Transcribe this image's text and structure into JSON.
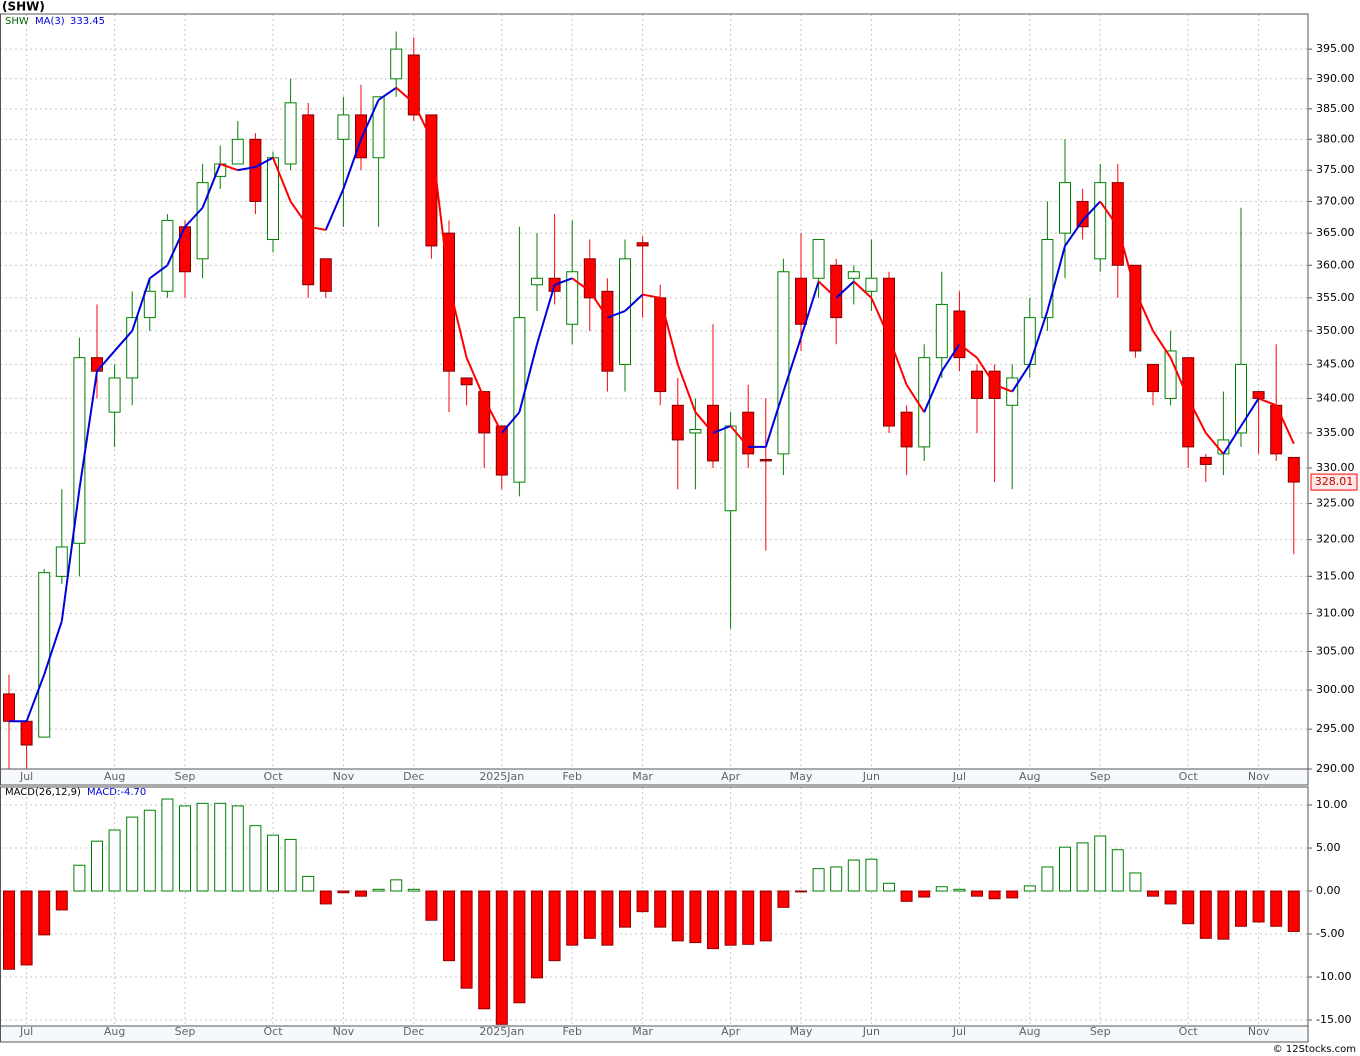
{
  "header": "(SHW)",
  "footer": "© 12Stocks.com",
  "chart_data": [
    {
      "type": "candlestick",
      "legend": {
        "symbol": "SHW",
        "ma_label": "MA(3)"
      },
      "log_scale": true,
      "grid": true,
      "categories": [
        null,
        "Jul",
        null,
        null,
        null,
        null,
        "Aug",
        null,
        null,
        null,
        "Sep",
        null,
        null,
        null,
        null,
        "Oct",
        null,
        null,
        null,
        "Nov",
        null,
        null,
        null,
        "Dec",
        null,
        null,
        null,
        null,
        "2025Jan",
        null,
        null,
        null,
        "Feb",
        null,
        null,
        null,
        "Mar",
        null,
        null,
        null,
        null,
        "Apr",
        null,
        null,
        null,
        "May",
        null,
        null,
        null,
        "Jun",
        null,
        null,
        null,
        null,
        "Jul",
        null,
        null,
        null,
        "Aug",
        null,
        null,
        null,
        "Sep",
        null,
        null,
        null,
        null,
        "Oct",
        null,
        null,
        null,
        "Nov",
        null,
        null
      ],
      "ylim": [
        290,
        401
      ],
      "yticks": [
        {
          "value": 290,
          "label": "290.00"
        },
        {
          "value": 295,
          "label": "295.00"
        },
        {
          "value": 300,
          "label": "300.00"
        },
        {
          "value": 305,
          "label": "305.00"
        },
        {
          "value": 310,
          "label": "310.00"
        },
        {
          "value": 315,
          "label": "315.00"
        },
        {
          "value": 320,
          "label": "320.00"
        },
        {
          "value": 325,
          "label": "325.00"
        },
        {
          "value": 330,
          "label": "330.00"
        },
        {
          "value": 335,
          "label": "335.00"
        },
        {
          "value": 340,
          "label": "340.00"
        },
        {
          "value": 345,
          "label": "345.00"
        },
        {
          "value": 350,
          "label": "350.00"
        },
        {
          "value": 355,
          "label": "355.00"
        },
        {
          "value": 360,
          "label": "360.00"
        },
        {
          "value": 365,
          "label": "365.00"
        },
        {
          "value": 370,
          "label": "370.00"
        },
        {
          "value": 375,
          "label": "375.00"
        },
        {
          "value": 380,
          "label": "380.00"
        },
        {
          "value": 385,
          "label": "385.00"
        },
        {
          "value": 390,
          "label": "390.00"
        },
        {
          "value": 395,
          "label": "395.00"
        }
      ],
      "up_color": "#008000",
      "down_color": "#ff0000",
      "open": [
        299.5,
        296,
        294,
        315,
        319.5,
        346,
        338,
        343,
        352,
        356,
        366,
        361,
        374,
        376,
        380,
        364,
        376,
        384,
        361,
        380,
        384,
        377,
        390,
        394,
        384,
        365,
        343,
        341,
        336,
        328,
        357,
        358,
        351,
        361,
        356,
        345,
        363.5,
        355,
        339,
        335,
        339,
        324,
        338,
        331.2,
        332,
        358,
        358,
        360,
        358,
        356,
        358,
        338,
        333,
        346,
        353,
        344,
        344,
        339,
        345,
        352,
        365,
        370,
        361,
        373,
        360,
        345,
        340,
        346,
        331.5,
        332,
        335,
        341,
        339,
        331.5
      ],
      "high": [
        302,
        296,
        316,
        327,
        349,
        354,
        345,
        356,
        358,
        368,
        367,
        376,
        379,
        383,
        381,
        378,
        390,
        386,
        361,
        387,
        389,
        387,
        398,
        397,
        384,
        367,
        343,
        341,
        336,
        366,
        365,
        368,
        367,
        364,
        358,
        364,
        364.5,
        357,
        343,
        340,
        351,
        338,
        342,
        340,
        361,
        365,
        364,
        361,
        360,
        364,
        359,
        339,
        348,
        359,
        356,
        345,
        345,
        345,
        355,
        370,
        380,
        372,
        376,
        376,
        360,
        345,
        350,
        346,
        332,
        341,
        369,
        341,
        348,
        331.5
      ],
      "low": [
        290,
        290,
        294,
        314,
        315,
        340,
        333,
        339,
        350,
        355,
        355,
        358,
        372,
        376,
        368,
        362,
        375,
        355,
        355,
        366,
        375,
        366,
        387,
        383,
        361,
        338,
        339,
        330,
        327,
        326,
        353,
        354,
        348,
        350,
        341,
        341,
        352,
        339,
        327,
        327,
        330,
        308,
        330,
        318.5,
        329,
        347,
        355,
        348,
        354,
        353,
        335,
        329,
        331,
        343,
        344,
        335,
        328,
        327,
        343,
        350,
        358,
        364,
        359,
        355,
        346,
        339,
        339,
        330,
        328,
        329,
        333,
        332,
        331,
        318
      ],
      "close": [
        296,
        293,
        315.5,
        319,
        346,
        344,
        343,
        352,
        356,
        367,
        359,
        373,
        376,
        380,
        370,
        377,
        386,
        357,
        356,
        384,
        377,
        387,
        395,
        384,
        363,
        344,
        342,
        335,
        329,
        352,
        358,
        356,
        359,
        355,
        344,
        361,
        363,
        341,
        334,
        335.5,
        331,
        336,
        332,
        331,
        359,
        351,
        364,
        352,
        359,
        358,
        336,
        333,
        346,
        354,
        346,
        340,
        340,
        343,
        352,
        364,
        373,
        366,
        373,
        360,
        347,
        341,
        347,
        333,
        330.5,
        334,
        345,
        340,
        332,
        328.01
      ],
      "ma": {
        "name": "MA(3)",
        "up_color": "#0000dd",
        "down_color": "#ff0000",
        "values": [
          296,
          296,
          302,
          309,
          327,
          344,
          347,
          350,
          358,
          360,
          366,
          369,
          376,
          375,
          375.5,
          377,
          370,
          366,
          365.5,
          372,
          380,
          386.5,
          388.5,
          386,
          380,
          357,
          346,
          340,
          335,
          338,
          348,
          357,
          358,
          356,
          352,
          353,
          355.5,
          355,
          345,
          338,
          335,
          336,
          333,
          333,
          341,
          349,
          357.5,
          355,
          357.5,
          355,
          349,
          342,
          338,
          344,
          348,
          346,
          342,
          341,
          345,
          353,
          363,
          367,
          370,
          366,
          356,
          350,
          346,
          340,
          335,
          332,
          336,
          340,
          339,
          333.45
        ]
      }
    },
    {
      "type": "bar",
      "legend": {
        "name": "MACD(26,12,9)",
        "value_text": "MACD:-4.70"
      },
      "grid": true,
      "categories": [
        null,
        "Jul",
        null,
        null,
        null,
        null,
        "Aug",
        null,
        null,
        null,
        "Sep",
        null,
        null,
        null,
        null,
        "Oct",
        null,
        null,
        null,
        "Nov",
        null,
        null,
        null,
        "Dec",
        null,
        null,
        null,
        null,
        "2025Jan",
        null,
        null,
        null,
        "Feb",
        null,
        null,
        null,
        "Mar",
        null,
        null,
        null,
        null,
        "Apr",
        null,
        null,
        null,
        "May",
        null,
        null,
        null,
        "Jun",
        null,
        null,
        null,
        null,
        "Jul",
        null,
        null,
        null,
        "Aug",
        null,
        null,
        null,
        "Sep",
        null,
        null,
        null,
        null,
        "Oct",
        null,
        null,
        null,
        "Nov",
        null,
        null
      ],
      "ylim": [
        -15.7,
        12.1
      ],
      "yticks": [
        {
          "value": -15,
          "label": "-15.00"
        },
        {
          "value": -10,
          "label": "-10.00"
        },
        {
          "value": -5,
          "label": "-5.00"
        },
        {
          "value": 0,
          "label": "0.00"
        },
        {
          "value": 5,
          "label": "5.00"
        },
        {
          "value": 10,
          "label": "10.00"
        }
      ],
      "up_color": "#008000",
      "down_color": "#ff0000",
      "values": [
        -9.1,
        -8.6,
        -5.1,
        -2.2,
        3.0,
        5.8,
        7.1,
        8.6,
        9.4,
        10.7,
        9.9,
        10.2,
        10.2,
        9.9,
        7.6,
        6.5,
        6.0,
        1.7,
        -1.5,
        -0.2,
        -0.6,
        0.2,
        1.3,
        0.2,
        -3.4,
        -8.1,
        -11.3,
        -13.7,
        -15.5,
        -13.0,
        -10.1,
        -8.1,
        -6.3,
        -5.5,
        -6.3,
        -4.2,
        -2.4,
        -4.2,
        -5.8,
        -6.0,
        -6.7,
        -6.3,
        -6.2,
        -5.8,
        -1.9,
        -0.1,
        2.6,
        2.8,
        3.6,
        3.7,
        0.9,
        -1.2,
        -0.7,
        0.5,
        0.2,
        -0.6,
        -0.9,
        -0.8,
        0.6,
        2.8,
        5.1,
        5.6,
        6.4,
        4.8,
        2.1,
        -0.6,
        -1.5,
        -3.8,
        -5.5,
        -5.6,
        -4.1,
        -3.6,
        -4.1,
        -4.7
      ]
    }
  ]
}
